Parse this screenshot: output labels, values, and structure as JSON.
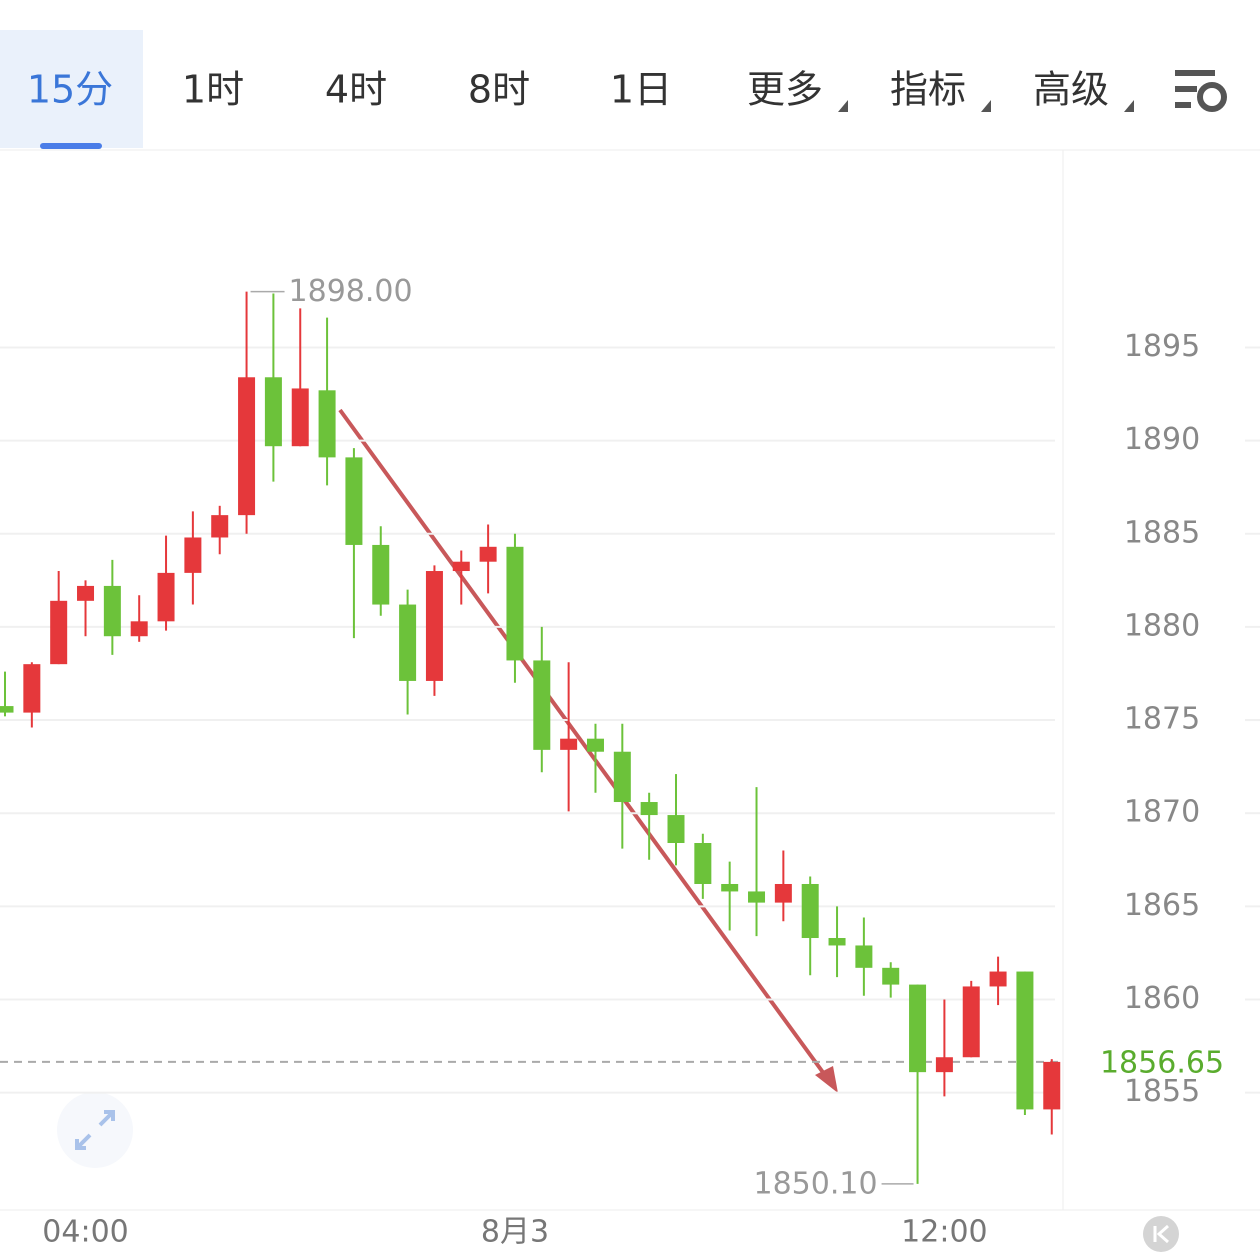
{
  "tabs": [
    "15分",
    "1时",
    "4时",
    "8时",
    "1日",
    "更多",
    "指标",
    "高级"
  ],
  "active_tab": 0,
  "chart_data": {
    "type": "candlestick",
    "categories": [
      null,
      null,
      null,
      "04:00",
      null,
      null,
      null,
      null,
      null,
      null,
      null,
      null,
      null,
      null,
      null,
      null,
      null,
      null,
      null,
      "8月3",
      null,
      null,
      null,
      null,
      null,
      null,
      null,
      null,
      null,
      null,
      null,
      null,
      null,
      null,
      null,
      "12:00",
      null,
      null,
      null,
      null
    ],
    "open": [
      1875.75,
      1875.4,
      1878.0,
      1881.4,
      1882.2,
      1879.5,
      1880.3,
      1882.9,
      1884.8,
      1886.0,
      1893.4,
      1889.7,
      1892.7,
      1889.1,
      1884.4,
      1881.2,
      1877.1,
      1883.0,
      1883.5,
      1884.3,
      1878.2,
      1873.4,
      1874.0,
      1873.3,
      1870.6,
      1869.9,
      1868.4,
      1866.2,
      1865.8,
      1865.2,
      1866.2,
      1863.3,
      1862.9,
      1861.7,
      1860.8,
      1856.1,
      1856.9,
      1860.7,
      1861.5,
      1854.1
    ],
    "high": [
      1877.6,
      1878.1,
      1883.0,
      1882.5,
      1883.6,
      1881.7,
      1884.9,
      1886.2,
      1886.5,
      1898.0,
      1897.9,
      1897.1,
      1896.6,
      1889.6,
      1885.4,
      1882.0,
      1883.3,
      1884.1,
      1885.5,
      1885.0,
      1880.0,
      1878.1,
      1874.8,
      1874.8,
      1871.1,
      1872.1,
      1868.9,
      1867.4,
      1871.4,
      1868.0,
      1866.6,
      1865.0,
      1864.4,
      1862.0,
      1860.8,
      1860.0,
      1861.0,
      1862.3,
      1861.5,
      1856.8
    ],
    "low": [
      1875.2,
      1874.6,
      1878.0,
      1879.5,
      1878.5,
      1879.2,
      1879.8,
      1881.2,
      1883.9,
      1885.0,
      1887.8,
      1889.7,
      1887.6,
      1879.4,
      1880.6,
      1875.3,
      1876.3,
      1881.2,
      1881.8,
      1877.0,
      1872.2,
      1870.1,
      1871.1,
      1868.1,
      1867.5,
      1867.2,
      1865.4,
      1863.7,
      1863.4,
      1864.2,
      1861.3,
      1861.2,
      1860.2,
      1860.1,
      1850.1,
      1854.8,
      1856.9,
      1859.7,
      1853.8,
      1852.75
    ],
    "close": [
      1875.4,
      1878.0,
      1881.4,
      1882.2,
      1879.5,
      1880.3,
      1882.9,
      1884.8,
      1886.0,
      1893.4,
      1889.7,
      1892.8,
      1889.1,
      1884.4,
      1881.2,
      1877.1,
      1883.0,
      1883.5,
      1884.3,
      1878.2,
      1873.4,
      1874.0,
      1873.3,
      1870.6,
      1869.9,
      1868.4,
      1866.2,
      1865.8,
      1865.2,
      1866.2,
      1863.3,
      1862.9,
      1861.7,
      1860.8,
      1856.1,
      1856.9,
      1860.7,
      1861.5,
      1854.1,
      1856.65
    ],
    "up_color": "#e5383b",
    "down_color": "#6cc23a",
    "ylim": [
      1848.7,
      1905.6
    ],
    "yticks": [
      1855,
      1860,
      1865,
      1870,
      1875,
      1880,
      1885,
      1890,
      1895
    ],
    "grid": true,
    "max_label": "1898.00",
    "min_label": "1850.10",
    "last_price": {
      "value": 1856.65,
      "label": "1856.65"
    }
  }
}
